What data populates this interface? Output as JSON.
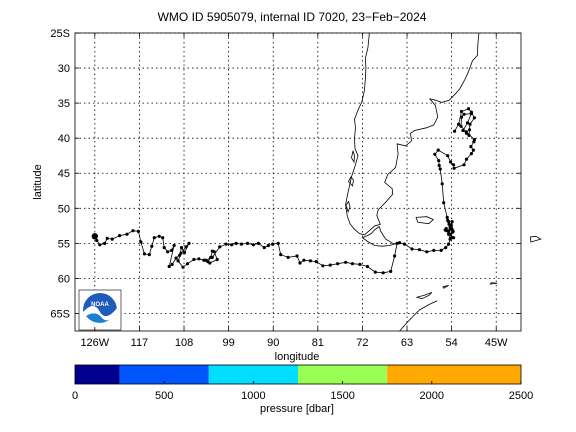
{
  "chart_data": [
    {
      "type": "scatter",
      "title": "WMO ID 5905079, internal ID 7020, 23−Feb−2024",
      "xlabel": "longitude",
      "ylabel": "latitude",
      "xlim": [
        -130,
        -40
      ],
      "ylim": [
        -67.5,
        -25
      ],
      "grid": true,
      "x_ticks": [
        -126,
        -117,
        -108,
        -99,
        -90,
        -81,
        -72,
        -63,
        -54,
        -45
      ],
      "x_tick_labels": [
        "126W",
        "117",
        "108",
        "99",
        "90",
        "81",
        "72",
        "63",
        "54",
        "45W"
      ],
      "y_ticks": [
        -25,
        -30,
        -35,
        -40,
        -45,
        -50,
        -55,
        -60,
        -65
      ],
      "y_tick_labels": [
        "25S",
        "30",
        "35",
        "40",
        "45",
        "50",
        "55",
        "60",
        "65S"
      ],
      "series": [
        {
          "marker_color": "#000000",
          "start": {
            "lon": -126.0,
            "lat": -54.0
          },
          "lon": [
            -126.0,
            -125.6,
            -125.0,
            -124.0,
            -123.5,
            -122.5,
            -121.0,
            -119.5,
            -118.3,
            -117.2,
            -116.7,
            -116.0,
            -115.0,
            -114.5,
            -114.0,
            -113.0,
            -112.3,
            -112.0,
            -111.3,
            -110.5,
            -110.0,
            -111.0,
            -110.4,
            -109.6,
            -108.9,
            -108.5,
            -107.9,
            -107.0,
            -107.6,
            -108.6,
            -109.2,
            -108.2,
            -107.3,
            -106.0,
            -105.0,
            -104.0,
            -103.2,
            -102.6,
            -102.3,
            -101.9,
            -101.3,
            -102.8,
            -103.7,
            -102.3,
            -100.8,
            -99.5,
            -98.4,
            -97.5,
            -96.4,
            -95.2,
            -94.0,
            -93.0,
            -91.8,
            -91.0,
            -90.1,
            -89.0,
            -88.5,
            -87.0,
            -85.2,
            -84.6,
            -83.8,
            -82.5,
            -81.3,
            -80.0,
            -78.5,
            -77.0,
            -75.4,
            -74.0,
            -72.5,
            -71.0,
            -69.4,
            -67.8,
            -66.3,
            -65.5,
            -65.0,
            -64.5,
            -63.5,
            -62.0,
            -60.5,
            -59.0,
            -57.6,
            -56.1,
            -55.2,
            -54.6,
            -54.3,
            -54.6,
            -55.0,
            -55.3,
            -55.1,
            -54.6,
            -54.0,
            -53.6,
            -54.2,
            -53.7,
            -54.3,
            -54.1,
            -53.9,
            -53.8,
            -53.9,
            -54.3,
            -54.5,
            -54.6,
            -54.8,
            -54.9,
            -55.6,
            -55.9,
            -56.3,
            -56.5,
            -56.6,
            -57.4,
            -56.7,
            -54.8,
            -54.2,
            -53.6,
            -53.5,
            -51.5,
            -51.0,
            -50.0,
            -49.6,
            -50.1,
            -49.5,
            -49.4,
            -51.0,
            -52.1,
            -52.0,
            -51.5,
            -50.0,
            -50.8,
            -51.7,
            -51.0,
            -50.5,
            -50.4,
            -50.3,
            -49.4,
            -50.0,
            -50.6,
            -52.0,
            -52.6,
            -53.4
          ],
          "lat": [
            -54.0,
            -54.6,
            -55.2,
            -55.0,
            -54.3,
            -54.4,
            -53.9,
            -53.7,
            -53.2,
            -53.3,
            -54.8,
            -56.5,
            -56.6,
            -55.4,
            -54.2,
            -54.0,
            -54.2,
            -55.6,
            -56.2,
            -56.0,
            -55.3,
            -58.3,
            -58.0,
            -57.1,
            -56.7,
            -55.6,
            -56.3,
            -55.0,
            -55.5,
            -56.4,
            -57.5,
            -58.4,
            -57.9,
            -57.3,
            -57.2,
            -57.4,
            -57.6,
            -57.0,
            -56.1,
            -56.2,
            -57.3,
            -57.8,
            -57.4,
            -57.0,
            -55.5,
            -55.1,
            -55.2,
            -55.0,
            -55.1,
            -55.0,
            -55.2,
            -55.0,
            -55.6,
            -55.3,
            -55.1,
            -55.0,
            -56.6,
            -57.0,
            -56.8,
            -57.8,
            -57.4,
            -57.5,
            -57.6,
            -58.2,
            -58.1,
            -57.9,
            -57.7,
            -57.9,
            -58.0,
            -58.3,
            -59.1,
            -59.2,
            -59.0,
            -56.8,
            -55.0,
            -54.9,
            -55.1,
            -55.8,
            -55.9,
            -56.2,
            -56.0,
            -56.0,
            -55.6,
            -55.1,
            -54.4,
            -53.7,
            -53.2,
            -53.1,
            -52.9,
            -53.3,
            -54.2,
            -54.2,
            -53.7,
            -53.3,
            -53.0,
            -52.4,
            -51.9,
            -53.4,
            -53.0,
            -52.7,
            -52.3,
            -51.9,
            -51.7,
            -51.3,
            -49.2,
            -46.5,
            -44.4,
            -43.9,
            -43.2,
            -42.3,
            -41.7,
            -42.5,
            -43.4,
            -43.8,
            -44.3,
            -43.8,
            -43.0,
            -42.2,
            -41.7,
            -41.2,
            -40.5,
            -40.2,
            -39.1,
            -38.3,
            -37.0,
            -36.6,
            -36.5,
            -37.8,
            -38.9,
            -39.3,
            -39.6,
            -38.8,
            -38.0,
            -37.1,
            -36.3,
            -35.8,
            -36.2,
            -38.0,
            -39.0
          ]
        }
      ],
      "colorbar": {
        "label": "pressure [dbar]",
        "ticks": [
          0,
          500,
          1000,
          1500,
          2000,
          2500
        ],
        "colors": [
          "#00008f",
          "#0055ff",
          "#00ddff",
          "#99ff55",
          "#ffaa00"
        ],
        "bounds": [
          0,
          250,
          750,
          1250,
          1750,
          2250,
          2500
        ]
      },
      "logo_text": "NOAA"
    }
  ]
}
